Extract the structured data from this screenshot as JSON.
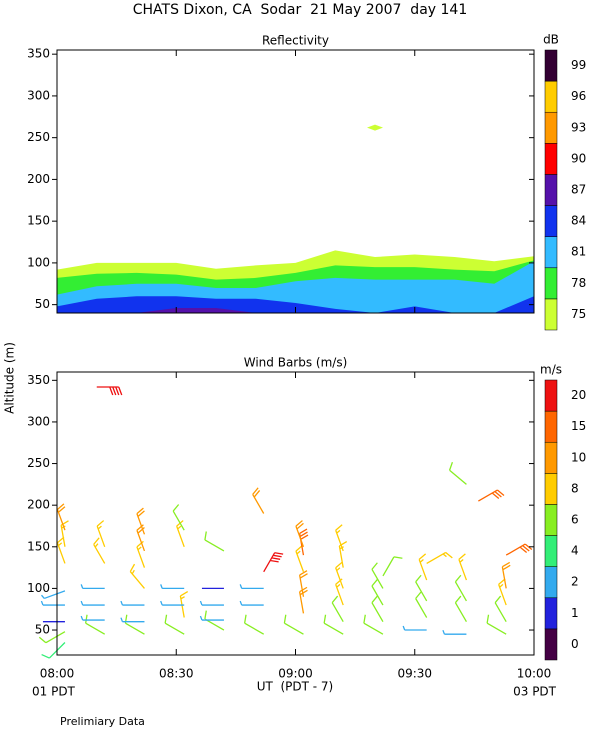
{
  "title": "CHATS Dixon, CA  Sodar  21 May 2007  day 141",
  "ylabel": "Altitude (m)",
  "xlabel": "UT  (PDT - 7)",
  "left_note": "01 PDT",
  "right_note": "03 PDT",
  "footer": "Prelimiary Data",
  "chart_data": [
    {
      "type": "contour",
      "title": "Reflectivity",
      "xlim": [
        0,
        120
      ],
      "ylim": [
        40,
        355
      ],
      "xticks": [
        {
          "value": 0,
          "label": "08:00"
        },
        {
          "value": 30,
          "label": "08:30"
        },
        {
          "value": 60,
          "label": "09:00"
        },
        {
          "value": 90,
          "label": "09:30"
        },
        {
          "value": 120,
          "label": "10:00"
        }
      ],
      "yticks": [
        50,
        100,
        150,
        200,
        250,
        300,
        350
      ],
      "x": [
        0,
        10,
        20,
        30,
        40,
        50,
        60,
        70,
        80,
        90,
        100,
        110,
        120
      ],
      "bands": [
        {
          "level": 75,
          "tops": [
            92,
            100,
            100,
            100,
            93,
            97,
            100,
            115,
            107,
            110,
            107,
            102,
            108
          ]
        },
        {
          "level": 78,
          "tops": [
            82,
            87,
            88,
            86,
            80,
            82,
            88,
            97,
            95,
            95,
            92,
            90,
            103
          ]
        },
        {
          "level": 81,
          "tops": [
            62,
            72,
            75,
            75,
            70,
            70,
            78,
            82,
            80,
            80,
            80,
            75,
            102
          ]
        },
        {
          "level": 84,
          "tops": [
            48,
            57,
            60,
            60,
            57,
            57,
            52,
            45,
            40,
            48,
            40,
            40,
            60
          ]
        },
        {
          "level": 87,
          "tops": [
            40,
            40,
            40,
            46,
            46,
            40,
            40,
            40,
            40,
            40,
            40,
            40,
            40
          ]
        }
      ],
      "spots": [
        {
          "x": 80,
          "y": 262
        }
      ],
      "colorbar": {
        "label": "dB",
        "levels": [
          75,
          78,
          81,
          84,
          87,
          90,
          93,
          96,
          99
        ],
        "colors": [
          "#ccff33",
          "#33ee33",
          "#33bbff",
          "#1133ee",
          "#5511aa",
          "#ff0000",
          "#ff9900",
          "#ffcc00",
          "#330033"
        ]
      }
    },
    {
      "type": "barbs",
      "title": "Wind Barbs (m/s)",
      "xlim": [
        0,
        120
      ],
      "ylim": [
        20,
        360
      ],
      "xticks": [
        {
          "value": 0,
          "label": "08:00"
        },
        {
          "value": 30,
          "label": "08:30"
        },
        {
          "value": 60,
          "label": "09:00"
        },
        {
          "value": 90,
          "label": "09:30"
        },
        {
          "value": 120,
          "label": "10:00"
        }
      ],
      "yticks": [
        50,
        100,
        150,
        200,
        250,
        300,
        350
      ],
      "barbs": [
        {
          "t": 2,
          "z": 35,
          "speed": 5,
          "dir": 225
        },
        {
          "t": 2,
          "z": 48,
          "speed": 6,
          "dir": 240
        },
        {
          "t": 2,
          "z": 60,
          "speed": 1.5,
          "dir": 270
        },
        {
          "t": 2,
          "z": 80,
          "speed": 3,
          "dir": 270
        },
        {
          "t": 2,
          "z": 97,
          "speed": 3,
          "dir": 250
        },
        {
          "t": 2,
          "z": 130,
          "speed": 9,
          "dir": 340
        },
        {
          "t": 2,
          "z": 150,
          "speed": 9,
          "dir": 350
        },
        {
          "t": 2,
          "z": 170,
          "speed": 10,
          "dir": 340
        },
        {
          "t": 12,
          "z": 45,
          "speed": 6,
          "dir": 300
        },
        {
          "t": 12,
          "z": 62,
          "speed": 3,
          "dir": 270
        },
        {
          "t": 12,
          "z": 80,
          "speed": 3,
          "dir": 270
        },
        {
          "t": 12,
          "z": 100,
          "speed": 3,
          "dir": 270
        },
        {
          "t": 12,
          "z": 130,
          "speed": 9,
          "dir": 330
        },
        {
          "t": 12,
          "z": 150,
          "speed": 9,
          "dir": 340
        },
        {
          "t": 10,
          "z": 342,
          "speed": 22,
          "dir": 90
        },
        {
          "t": 22,
          "z": 45,
          "speed": 6,
          "dir": 300
        },
        {
          "t": 22,
          "z": 60,
          "speed": 3,
          "dir": 270
        },
        {
          "t": 22,
          "z": 80,
          "speed": 3,
          "dir": 270
        },
        {
          "t": 22,
          "z": 100,
          "speed": 8,
          "dir": 320
        },
        {
          "t": 22,
          "z": 125,
          "speed": 9,
          "dir": 340
        },
        {
          "t": 22,
          "z": 145,
          "speed": 10,
          "dir": 340
        },
        {
          "t": 22,
          "z": 165,
          "speed": 10,
          "dir": 340
        },
        {
          "t": 32,
          "z": 45,
          "speed": 7,
          "dir": 300
        },
        {
          "t": 32,
          "z": 65,
          "speed": 9,
          "dir": 350
        },
        {
          "t": 32,
          "z": 80,
          "speed": 3,
          "dir": 270
        },
        {
          "t": 32,
          "z": 100,
          "speed": 3,
          "dir": 270
        },
        {
          "t": 32,
          "z": 150,
          "speed": 9,
          "dir": 340
        },
        {
          "t": 32,
          "z": 170,
          "speed": 7,
          "dir": 330
        },
        {
          "t": 42,
          "z": 50,
          "speed": 6,
          "dir": 300
        },
        {
          "t": 42,
          "z": 62,
          "speed": 3,
          "dir": 270
        },
        {
          "t": 42,
          "z": 80,
          "speed": 3,
          "dir": 270
        },
        {
          "t": 42,
          "z": 100,
          "speed": 1.5,
          "dir": 270
        },
        {
          "t": 42,
          "z": 145,
          "speed": 6,
          "dir": 300
        },
        {
          "t": 52,
          "z": 45,
          "speed": 6,
          "dir": 300
        },
        {
          "t": 52,
          "z": 80,
          "speed": 3,
          "dir": 270
        },
        {
          "t": 52,
          "z": 100,
          "speed": 3,
          "dir": 270
        },
        {
          "t": 52,
          "z": 120,
          "speed": 20,
          "dir": 30
        },
        {
          "t": 52,
          "z": 190,
          "speed": 10,
          "dir": 330
        },
        {
          "t": 62,
          "z": 45,
          "speed": 6,
          "dir": 300
        },
        {
          "t": 62,
          "z": 70,
          "speed": 10,
          "dir": 350
        },
        {
          "t": 62,
          "z": 90,
          "speed": 10,
          "dir": 350
        },
        {
          "t": 62,
          "z": 120,
          "speed": 9,
          "dir": 340
        },
        {
          "t": 62,
          "z": 140,
          "speed": 15,
          "dir": 350
        },
        {
          "t": 62,
          "z": 150,
          "speed": 10,
          "dir": 340
        },
        {
          "t": 72,
          "z": 45,
          "speed": 6,
          "dir": 300
        },
        {
          "t": 72,
          "z": 60,
          "speed": 6,
          "dir": 330
        },
        {
          "t": 72,
          "z": 80,
          "speed": 8,
          "dir": 340
        },
        {
          "t": 72,
          "z": 100,
          "speed": 8,
          "dir": 340
        },
        {
          "t": 72,
          "z": 125,
          "speed": 9,
          "dir": 350
        },
        {
          "t": 72,
          "z": 145,
          "speed": 9,
          "dir": 340
        },
        {
          "t": 82,
          "z": 45,
          "speed": 6,
          "dir": 300
        },
        {
          "t": 82,
          "z": 60,
          "speed": 6,
          "dir": 330
        },
        {
          "t": 82,
          "z": 80,
          "speed": 6,
          "dir": 330
        },
        {
          "t": 82,
          "z": 100,
          "speed": 7,
          "dir": 330
        },
        {
          "t": 82,
          "z": 115,
          "speed": 7,
          "dir": 30
        },
        {
          "t": 93,
          "z": 50,
          "speed": 3,
          "dir": 270
        },
        {
          "t": 93,
          "z": 65,
          "speed": 6,
          "dir": 330
        },
        {
          "t": 93,
          "z": 85,
          "speed": 7,
          "dir": 330
        },
        {
          "t": 93,
          "z": 110,
          "speed": 8,
          "dir": 340
        },
        {
          "t": 93,
          "z": 130,
          "speed": 8,
          "dir": 60
        },
        {
          "t": 103,
          "z": 45,
          "speed": 3,
          "dir": 270
        },
        {
          "t": 103,
          "z": 60,
          "speed": 6,
          "dir": 330
        },
        {
          "t": 103,
          "z": 85,
          "speed": 7,
          "dir": 330
        },
        {
          "t": 103,
          "z": 110,
          "speed": 8,
          "dir": 340
        },
        {
          "t": 106,
          "z": 205,
          "speed": 15,
          "dir": 60
        },
        {
          "t": 103,
          "z": 225,
          "speed": 7,
          "dir": 310
        },
        {
          "t": 113,
          "z": 45,
          "speed": 6,
          "dir": 300
        },
        {
          "t": 113,
          "z": 60,
          "speed": 6,
          "dir": 330
        },
        {
          "t": 113,
          "z": 80,
          "speed": 8,
          "dir": 340
        },
        {
          "t": 113,
          "z": 100,
          "speed": 10,
          "dir": 350
        },
        {
          "t": 113,
          "z": 140,
          "speed": 15,
          "dir": 60
        }
      ],
      "colorbar": {
        "label": "m/s",
        "levels": [
          0,
          1,
          2,
          4,
          6,
          8,
          10,
          15,
          20
        ],
        "colors": [
          "#440044",
          "#2222dd",
          "#33aaee",
          "#33ee77",
          "#88ee22",
          "#ffcc00",
          "#ff9900",
          "#ff6600",
          "#ee1111"
        ]
      }
    }
  ]
}
